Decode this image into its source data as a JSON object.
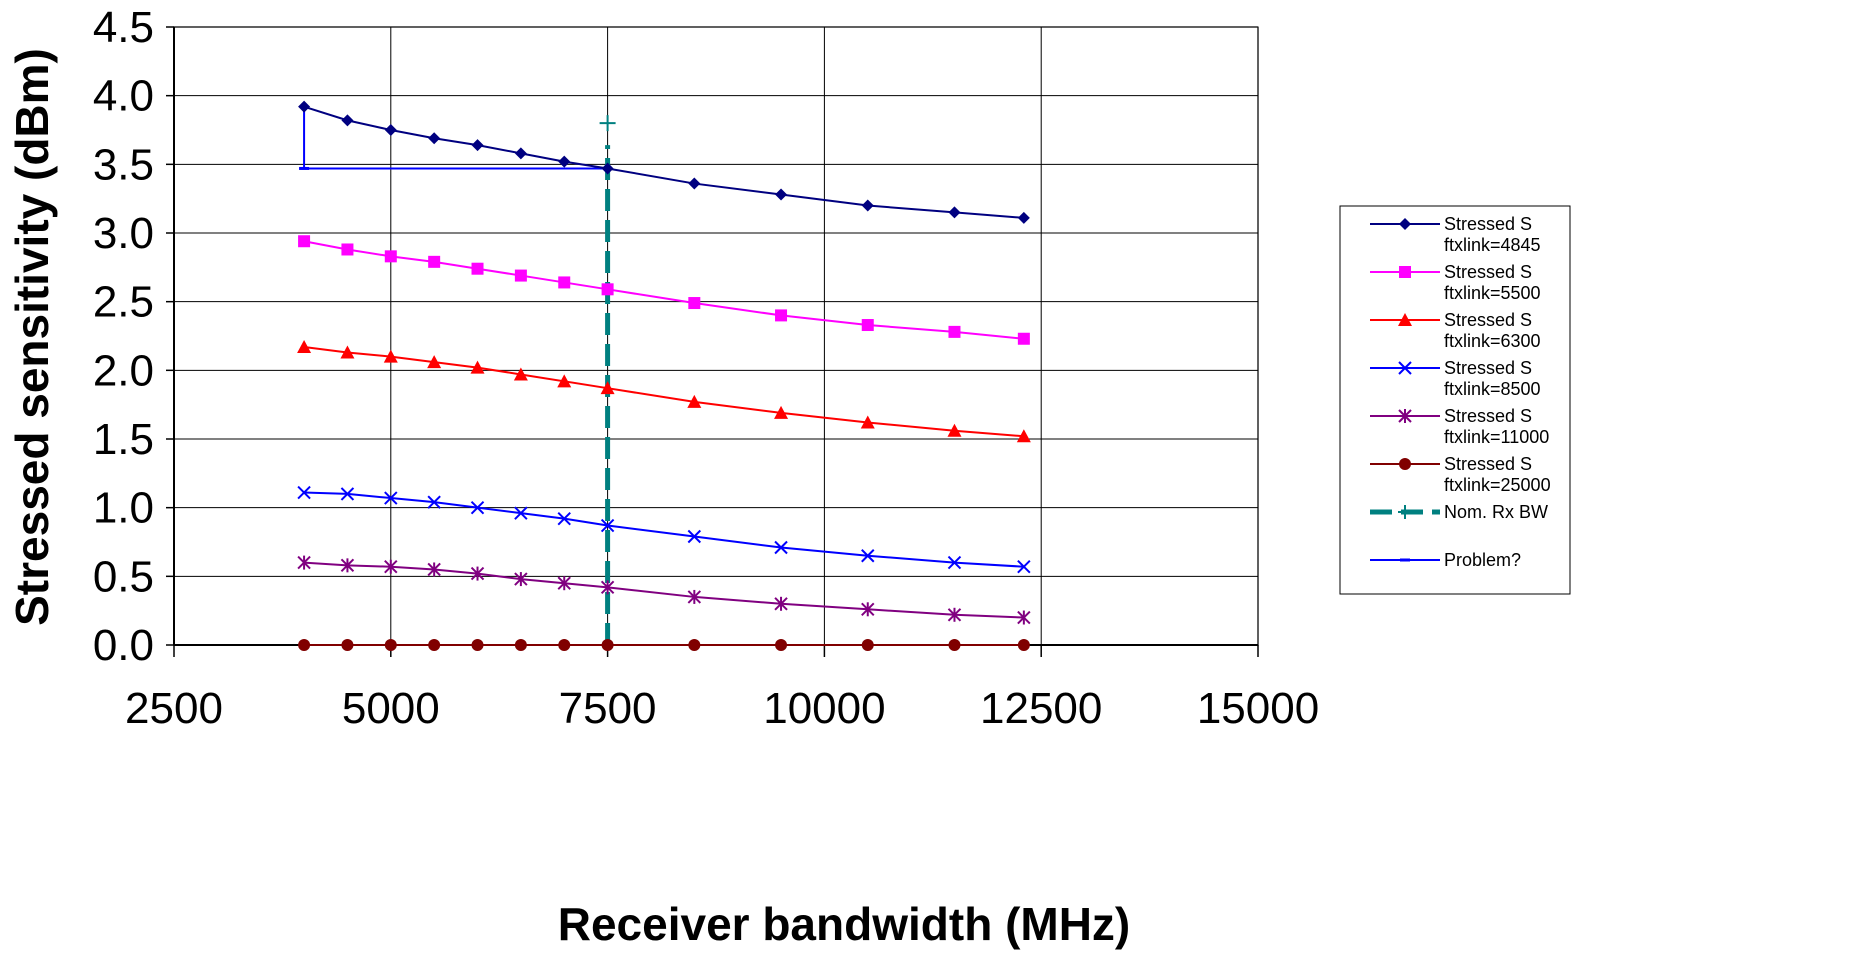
{
  "chart_data": {
    "type": "line",
    "xlabel": "Receiver bandwidth (MHz)",
    "ylabel": "Stressed sensitivity (dBm)",
    "xlim": [
      2500,
      15000
    ],
    "ylim": [
      0.0,
      4.5
    ],
    "xticks": [
      2500,
      5000,
      7500,
      10000,
      12500,
      15000
    ],
    "yticks": [
      0.0,
      0.5,
      1.0,
      1.5,
      2.0,
      2.5,
      3.0,
      3.5,
      4.0,
      4.5
    ],
    "ytick_labels": [
      "0.0",
      "0.5",
      "1.0",
      "1.5",
      "2.0",
      "2.5",
      "3.0",
      "3.5",
      "4.0",
      "4.5"
    ],
    "grid": true,
    "legend_position": "right",
    "x": [
      4000,
      4500,
      5000,
      5500,
      6000,
      6500,
      7000,
      7500,
      8500,
      9500,
      10500,
      11500,
      12300
    ],
    "series": [
      {
        "name_line1": "Stressed S",
        "name_line2": "ftxlink=4845",
        "color": "#000080",
        "marker": "diamond",
        "values": [
          3.92,
          3.82,
          3.75,
          3.69,
          3.64,
          3.58,
          3.52,
          3.47,
          3.36,
          3.28,
          3.2,
          3.15,
          3.11
        ]
      },
      {
        "name_line1": "Stressed S",
        "name_line2": "ftxlink=5500",
        "color": "#FF00FF",
        "marker": "square",
        "values": [
          2.94,
          2.88,
          2.83,
          2.79,
          2.74,
          2.69,
          2.64,
          2.59,
          2.49,
          2.4,
          2.33,
          2.28,
          2.23
        ]
      },
      {
        "name_line1": "Stressed S",
        "name_line2": "ftxlink=6300",
        "color": "#FF0000",
        "marker": "triangle",
        "values": [
          2.17,
          2.13,
          2.1,
          2.06,
          2.02,
          1.97,
          1.92,
          1.87,
          1.77,
          1.69,
          1.62,
          1.56,
          1.52
        ]
      },
      {
        "name_line1": "Stressed S",
        "name_line2": "ftxlink=8500",
        "color": "#0000FF",
        "marker": "x",
        "values": [
          1.11,
          1.1,
          1.07,
          1.04,
          1.0,
          0.96,
          0.92,
          0.87,
          0.79,
          0.71,
          0.65,
          0.6,
          0.57
        ]
      },
      {
        "name_line1": "Stressed S",
        "name_line2": "ftxlink=11000",
        "color": "#800080",
        "marker": "star",
        "values": [
          0.6,
          0.58,
          0.57,
          0.55,
          0.52,
          0.48,
          0.45,
          0.42,
          0.35,
          0.3,
          0.26,
          0.22,
          0.2
        ]
      },
      {
        "name_line1": "Stressed S",
        "name_line2": "ftxlink=25000",
        "color": "#800000",
        "marker": "circle",
        "values": [
          0.0,
          0.0,
          0.0,
          0.0,
          0.0,
          0.0,
          0.0,
          0.0,
          0.0,
          0.0,
          0.0,
          0.0,
          0.0
        ]
      }
    ],
    "nominal_line": {
      "name": "Nom. Rx BW",
      "color": "#008080",
      "x": 7500,
      "y_range": [
        0.0,
        3.8
      ]
    },
    "problem_line": {
      "name": "Problem?",
      "color": "#0000FF",
      "points": [
        [
          4000,
          3.92
        ],
        [
          4000,
          3.47
        ],
        [
          7500,
          3.47
        ]
      ]
    }
  }
}
